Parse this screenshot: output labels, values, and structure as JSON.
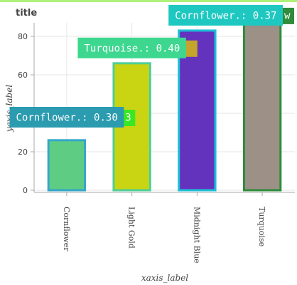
{
  "chart_data": {
    "type": "bar",
    "title": "title",
    "xlabel": "xaxis_label",
    "ylabel": "yaxis_label",
    "categories": [
      "Cornflower",
      "Light Gold",
      "Midnight Blue",
      "Turquoise"
    ],
    "values": [
      26,
      66,
      83,
      88
    ],
    "bar_fill": [
      "#5fcc84",
      "#c9d412",
      "#6433bd",
      "#9c9087"
    ],
    "bar_edge": [
      "#36a7c9",
      "#4fcf97",
      "#1cc0d8",
      "#2f8c3a"
    ],
    "ylim": [
      0,
      88
    ],
    "yticks": [
      0,
      20,
      40,
      60,
      80
    ],
    "grid": true,
    "annotations": [
      {
        "text": "Cornflower.: 0.30",
        "category": "Cornflower",
        "value": 35,
        "color": "#2b9baf",
        "accent": "#39e823",
        "accent_text": "3"
      },
      {
        "text": "Turquoise.: 0.40",
        "category": "Light Gold",
        "value": 71,
        "color": "#3dd78f",
        "accent": "#c4a42b",
        "accent_text": ""
      },
      {
        "text": "Cornflower.: 0.37",
        "category": "Turquoise",
        "value": 88,
        "color": "#1ec8c0",
        "accent": "#2f8c3a",
        "accent_text": "w"
      }
    ]
  }
}
